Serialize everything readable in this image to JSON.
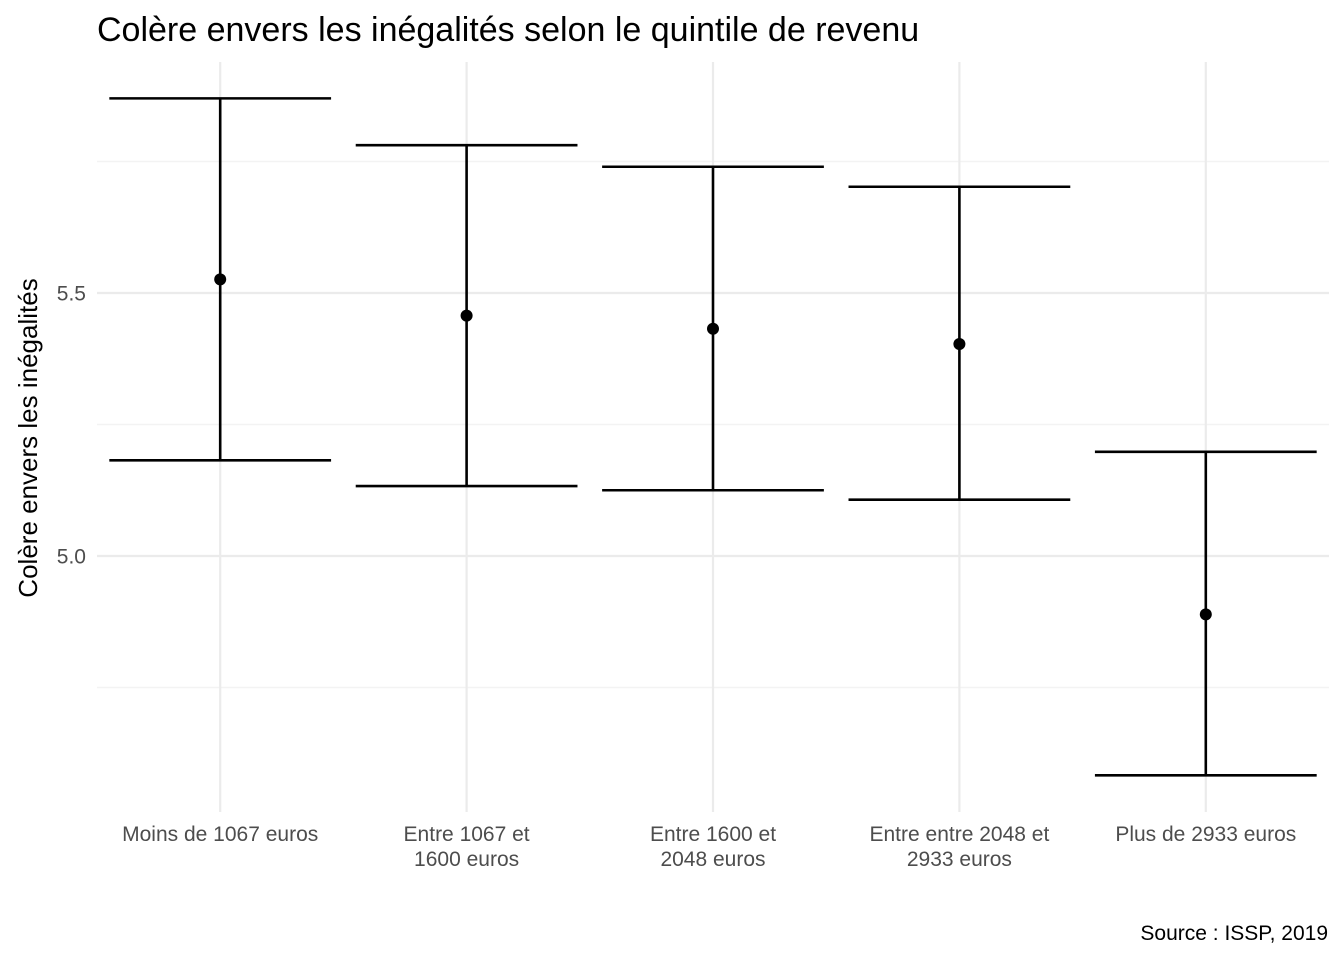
{
  "chart_data": {
    "type": "errorbar",
    "title": "Colère envers les inégalités selon le quintile de revenu",
    "xlabel": "",
    "ylabel": "Colère envers les inégalités",
    "caption": "Source : ISSP, 2019",
    "categories": [
      [
        "Moins de 1067 euros"
      ],
      [
        "Entre 1067 et",
        "1600 euros"
      ],
      [
        "Entre 1600 et",
        "2048 euros"
      ],
      [
        "Entre entre 2048 et",
        "2933 euros"
      ],
      [
        "Plus de 2933 euros"
      ]
    ],
    "values": [
      5.526,
      5.457,
      5.432,
      5.403,
      4.889
    ],
    "lower": [
      5.182,
      5.133,
      5.125,
      5.107,
      4.583
    ],
    "upper": [
      5.87,
      5.781,
      5.74,
      5.702,
      5.198
    ],
    "yticks": [
      5.0,
      5.5
    ],
    "ytick_labels": [
      "5.0",
      "5.5"
    ],
    "ylim": [
      4.5,
      5.93
    ],
    "grid": true,
    "legend": "none"
  }
}
